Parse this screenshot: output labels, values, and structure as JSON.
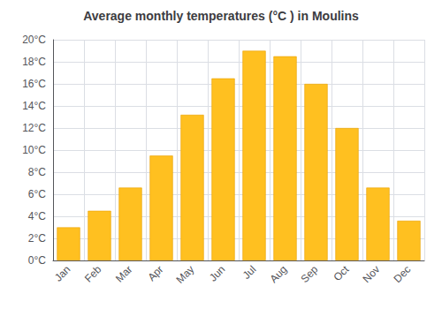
{
  "chart_data": {
    "type": "bar",
    "title": "Average monthly temperatures (°C ) in Moulins",
    "categories": [
      "Jan",
      "Feb",
      "Mar",
      "Apr",
      "May",
      "Jun",
      "Jul",
      "Aug",
      "Sep",
      "Oct",
      "Nov",
      "Dec"
    ],
    "values": [
      3.0,
      4.5,
      6.6,
      9.5,
      13.2,
      16.5,
      19.0,
      18.5,
      16.0,
      12.0,
      6.6,
      3.6
    ],
    "color": "#FFC020",
    "ylim": [
      0,
      20
    ],
    "yticks": [
      {
        "value": 0,
        "label": "0°C"
      },
      {
        "value": 2,
        "label": "2°C"
      },
      {
        "value": 4,
        "label": "4°C"
      },
      {
        "value": 6,
        "label": "6°C"
      },
      {
        "value": 8,
        "label": "8°C"
      },
      {
        "value": 10,
        "label": "10°C"
      },
      {
        "value": 12,
        "label": "12°C"
      },
      {
        "value": 14,
        "label": "14°C"
      },
      {
        "value": 16,
        "label": "16°C"
      },
      {
        "value": 18,
        "label": "18°C"
      },
      {
        "value": 20,
        "label": "20°C"
      }
    ],
    "grid": true
  }
}
